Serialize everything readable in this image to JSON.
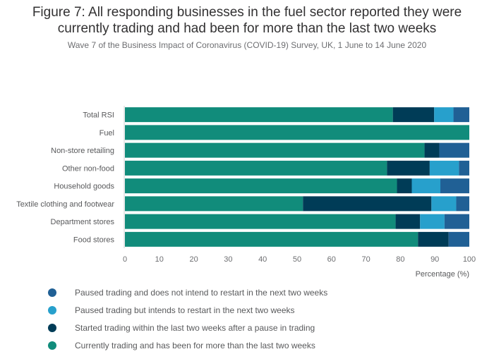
{
  "chart_data": {
    "type": "bar",
    "orientation": "horizontal",
    "stacked": true,
    "title": "Figure 7: All responding businesses in the fuel sector reported they were currently trading and had been for more than the last two weeks",
    "title_line1": "Figure 7: All responding businesses in the fuel sector reported they were",
    "title_line2": "currently trading and had been for more than the last two weeks",
    "subtitle": "Wave 7 of the Business Impact of Coronavirus (COVID-19) Survey, UK, 1 June to 14 June 2020",
    "xlabel": "Percentage (%)",
    "ylabel": "",
    "xlim": [
      0,
      100
    ],
    "xticks": [
      0,
      10,
      20,
      30,
      40,
      50,
      60,
      70,
      80,
      90,
      100
    ],
    "categories": [
      "Total RSI",
      "Fuel",
      "Non-store retailing",
      "Other non-food",
      "Household goods",
      "Textile clothing and footwear",
      "Department stores",
      "Food stores"
    ],
    "series": [
      {
        "name": "Currently trading and has been for more than the last two weeks",
        "color": "#118c7b",
        "values": [
          77.8,
          100,
          87.0,
          76.1,
          79.0,
          51.7,
          78.6,
          85.1
        ]
      },
      {
        "name": "Started trading within the last two weeks after a pause in trading",
        "color": "#003c57",
        "values": [
          12.0,
          0,
          4.3,
          12.4,
          4.3,
          37.3,
          7.1,
          8.9
        ]
      },
      {
        "name": "Paused trading but intends to restart in the next two weeks",
        "color": "#27a0cc",
        "values": [
          5.6,
          0,
          0,
          8.5,
          8.3,
          7.2,
          7.1,
          0
        ]
      },
      {
        "name": "Paused trading and does not intend to restart in the next two weeks",
        "color": "#206095",
        "values": [
          4.6,
          0,
          8.7,
          3.0,
          8.4,
          3.8,
          7.2,
          6.0
        ]
      }
    ],
    "legend": {
      "placement": "bottom-left",
      "entries": [
        {
          "label": "Paused trading and does not intend to restart in the next two weeks",
          "color": "#206095"
        },
        {
          "label": "Paused trading but intends to restart in the next two weeks",
          "color": "#27a0cc"
        },
        {
          "label": "Started trading within the last two weeks after a pause in trading",
          "color": "#003c57"
        },
        {
          "label": "Currently trading and has been for more than the last two weeks",
          "color": "#118c7b"
        }
      ]
    },
    "grid": false
  }
}
